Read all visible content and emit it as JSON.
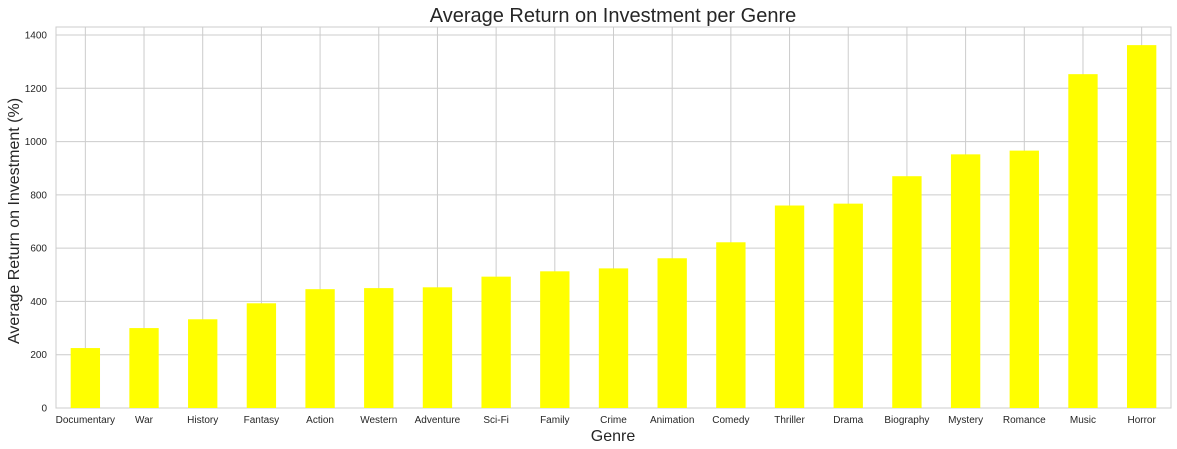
{
  "chart_data": {
    "type": "bar",
    "title": "Average Return on Investment per Genre",
    "xlabel": "Genre",
    "ylabel": "Average Return on Investment (%)",
    "categories": [
      "Documentary",
      "War",
      "History",
      "Fantasy",
      "Action",
      "Western",
      "Adventure",
      "Sci-Fi",
      "Family",
      "Crime",
      "Animation",
      "Comedy",
      "Thriller",
      "Drama",
      "Biography",
      "Mystery",
      "Romance",
      "Music",
      "Horror"
    ],
    "values": [
      225,
      300,
      333,
      393,
      446,
      450,
      453,
      493,
      513,
      524,
      562,
      622,
      760,
      767,
      870,
      952,
      966,
      1253,
      1362
    ],
    "ylim": [
      0,
      1430
    ],
    "yticks": [
      0,
      200,
      400,
      600,
      800,
      1000,
      1200,
      1400
    ],
    "grid": true,
    "bar_color": "#ffff00",
    "grid_color": "#cccccc"
  }
}
